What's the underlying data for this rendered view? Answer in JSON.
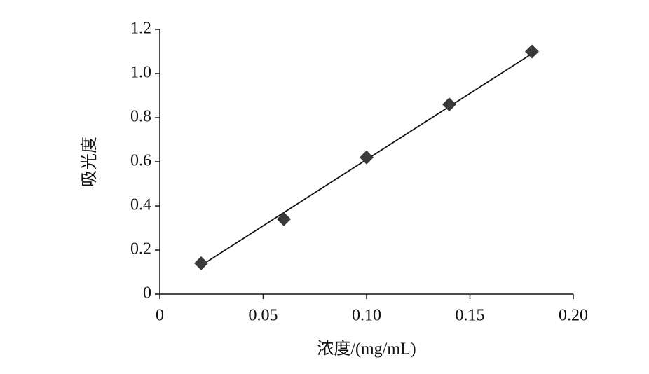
{
  "chart_data": {
    "type": "scatter",
    "x_label": "浓度/(mg/mL)",
    "y_label": "吸光度",
    "series": [
      {
        "x": [
          0.02,
          0.06,
          0.1,
          0.14,
          0.18
        ],
        "values": [
          0.14,
          0.34,
          0.62,
          0.86,
          1.1
        ],
        "color": "#3a3a3a"
      }
    ],
    "fit_line": {
      "x": [
        0.02,
        0.18
      ],
      "values": [
        0.13,
        1.09
      ],
      "color": "#111111"
    },
    "xlim": [
      0,
      0.2
    ],
    "ylim": [
      0,
      1.2
    ],
    "xticks": [
      0,
      0.05,
      {
        "value": 0.1,
        "label": "0.10"
      },
      0.15,
      {
        "value": 0.2,
        "label": "0.20"
      }
    ],
    "yticks": [
      0,
      0.2,
      0.4,
      0.6,
      0.8,
      {
        "value": 1,
        "label": "1.0"
      },
      1.2
    ],
    "grid": false
  }
}
